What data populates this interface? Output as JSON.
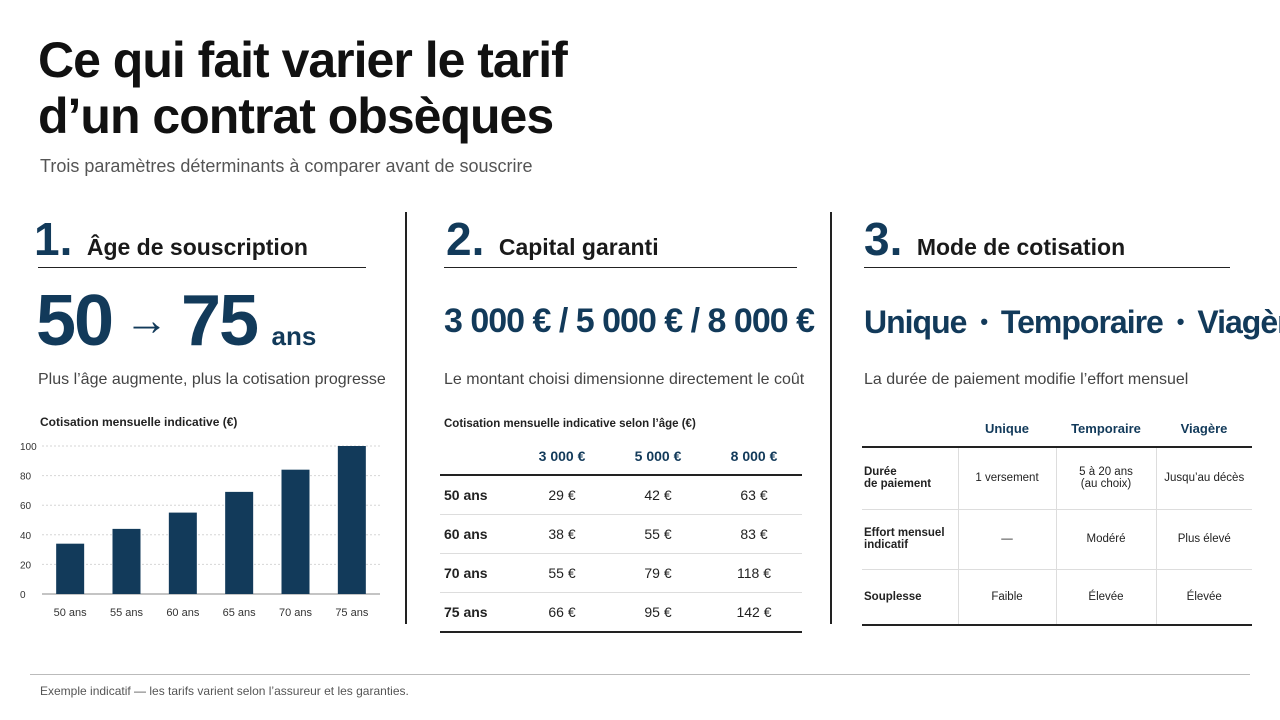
{
  "header": {
    "title_line1": "Ce qui fait varier le tarif",
    "title_line2": "d’un contrat obsèques",
    "subtitle": "Trois paramètres déterminants à comparer avant de souscrire"
  },
  "section1": {
    "number": "1.",
    "title": "Âge de souscription",
    "big_from": "50",
    "arrow": "→",
    "big_to": "75",
    "big_unit": "ans",
    "description": "Plus l’âge augmente, plus la cotisation progresse",
    "chart_title": "Cotisation mensuelle indicative (€)"
  },
  "chart_data": {
    "type": "bar",
    "title": "Cotisation mensuelle indicative (€)",
    "categories": [
      "50 ans",
      "55 ans",
      "60 ans",
      "65 ans",
      "70 ans",
      "75 ans"
    ],
    "values": [
      34,
      44,
      55,
      69,
      84,
      100
    ],
    "ylim": [
      0,
      100
    ],
    "yticks": [
      0,
      20,
      40,
      60,
      80,
      100
    ],
    "grid": true,
    "bar_color": "#123a5a"
  },
  "section2": {
    "number": "2.",
    "title": "Capital garanti",
    "big": "3 000 € / 5 000 € / 8 000 €",
    "description": "Le montant choisi dimensionne directement le coût",
    "table_title": "Cotisation mensuelle indicative selon l’âge (€)",
    "columns": [
      "",
      "3 000 €",
      "5 000 €",
      "8 000 €"
    ],
    "rows": [
      [
        "50 ans",
        "29 €",
        "42 €",
        "63 €"
      ],
      [
        "60 ans",
        "38 €",
        "55 €",
        "83 €"
      ],
      [
        "70 ans",
        "55 €",
        "79 €",
        "118 €"
      ],
      [
        "75 ans",
        "66 €",
        "95 €",
        "142 €"
      ]
    ]
  },
  "section3": {
    "number": "3.",
    "title": "Mode de cotisation",
    "big_parts": [
      "Unique",
      "•",
      "Temporaire",
      "•",
      "Viagère"
    ],
    "description": "La durée de paiement modifie l’effort mensuel",
    "columns": [
      "",
      "Unique",
      "Temporaire",
      "Viagère"
    ],
    "rows": [
      [
        "Durée\nde paiement",
        "1 versement",
        "5 à 20 ans\n(au choix)",
        "Jusqu’au décès"
      ],
      [
        "Effort mensuel\nindicatif",
        "—",
        "Modéré",
        "Plus élevé"
      ],
      [
        "Souplesse",
        "Faible",
        "Élevée",
        "Élevée"
      ]
    ]
  },
  "footer": {
    "note": "Exemple indicatif — les tarifs varient selon l’assureur et les garanties."
  },
  "colors": {
    "accent": "#123a5a"
  }
}
